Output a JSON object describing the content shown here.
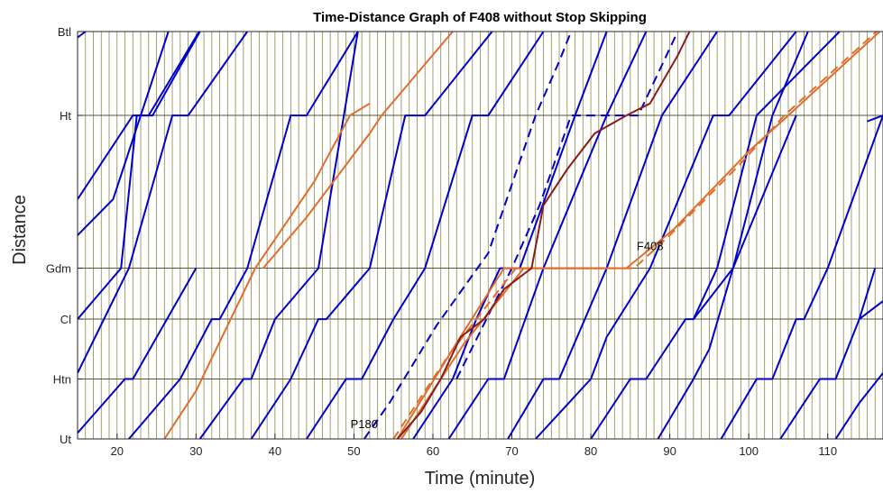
{
  "chart_data": {
    "type": "line",
    "title": "Time-Distance Graph of F408 without Stop Skipping",
    "xlabel": "Time (minute)",
    "ylabel": "Distance",
    "xlim": [
      15,
      117
    ],
    "x_ticks": [
      20,
      30,
      40,
      50,
      60,
      70,
      80,
      90,
      100,
      110
    ],
    "stations": [
      {
        "name": "Ut",
        "pos": 0
      },
      {
        "name": "Htn",
        "pos": 1
      },
      {
        "name": "Cl",
        "pos": 2
      },
      {
        "name": "Gdm",
        "pos": 2.85
      },
      {
        "name": "Ht",
        "pos": 5.4
      },
      {
        "name": "Btl",
        "pos": 6.8
      }
    ],
    "grid": "vertical lines every minute, horizontal lines at stations",
    "colors": {
      "regular": "#0000cc",
      "express": "#e46c2a",
      "highlight": "#8b1a1a",
      "grid_vertical": "#8a8a4a",
      "grid_horizontal": "#555533"
    },
    "annotations": [
      {
        "text": "P180",
        "x": 51.3,
        "y": 0.18
      },
      {
        "text": "F408",
        "x": 87.5,
        "y": 3.15
      }
    ],
    "series": [
      {
        "color": "#0000cc",
        "style": "solid",
        "points": [
          [
            15,
            0.1
          ],
          [
            21,
            1
          ],
          [
            22,
            1
          ],
          [
            30,
            2.85
          ]
        ]
      },
      {
        "color": "#0000cc",
        "style": "solid",
        "points": [
          [
            15,
            2.0
          ],
          [
            20.5,
            2.85
          ],
          [
            22.5,
            5.4
          ],
          [
            24.0,
            5.4
          ],
          [
            30.4,
            6.8
          ]
        ]
      },
      {
        "color": "#0000cc",
        "style": "solid",
        "points": [
          [
            15,
            4.0
          ],
          [
            22.0,
            5.4
          ],
          [
            24.5,
            5.4
          ],
          [
            30.5,
            6.8
          ]
        ]
      },
      {
        "color": "#0000cc",
        "style": "solid",
        "points": [
          [
            15,
            6.7
          ],
          [
            16,
            6.8
          ]
        ]
      },
      {
        "color": "#0000cc",
        "style": "solid",
        "points": [
          [
            15,
            3.4
          ],
          [
            19.5,
            4.0
          ],
          [
            26.5,
            6.8
          ]
        ]
      },
      {
        "color": "#0000cc",
        "style": "solid",
        "points": [
          [
            15,
            1.1
          ],
          [
            21.5,
            2.85
          ],
          [
            27.0,
            5.4
          ],
          [
            29.0,
            5.4
          ],
          [
            36.5,
            6.8
          ]
        ]
      },
      {
        "color": "#0000cc",
        "style": "solid",
        "points": [
          [
            21.5,
            0
          ],
          [
            28.0,
            1
          ],
          [
            32.0,
            2.0
          ],
          [
            33.0,
            2.0
          ],
          [
            36.5,
            2.85
          ],
          [
            42.0,
            5.4
          ],
          [
            44.0,
            5.4
          ],
          [
            50.5,
            6.8
          ]
        ]
      },
      {
        "color": "#0000cc",
        "style": "solid",
        "points": [
          [
            30.5,
            0
          ],
          [
            36.0,
            1
          ],
          [
            37.0,
            1
          ],
          [
            40.0,
            2.0
          ],
          [
            45.5,
            2.85
          ],
          [
            50.5,
            6.8
          ]
        ]
      },
      {
        "color": "#0000cc",
        "style": "solid",
        "points": [
          [
            37.0,
            0
          ],
          [
            42.0,
            1
          ],
          [
            45.5,
            2.0
          ],
          [
            46.5,
            2.0
          ],
          [
            52.0,
            2.85
          ],
          [
            56.5,
            5.4
          ],
          [
            59.0,
            5.4
          ],
          [
            67.5,
            6.8
          ]
        ]
      },
      {
        "color": "#0000cc",
        "style": "solid",
        "points": [
          [
            44.0,
            0
          ],
          [
            49.0,
            1
          ],
          [
            51.0,
            1
          ],
          [
            55.0,
            2.0
          ],
          [
            59.0,
            2.85
          ],
          [
            65.0,
            5.4
          ],
          [
            67.0,
            5.4
          ],
          [
            74.0,
            6.8
          ]
        ]
      },
      {
        "color": "#0000cc",
        "style": "solid",
        "points": [
          [
            57.5,
            0
          ],
          [
            62.5,
            1
          ],
          [
            65.5,
            2.0
          ],
          [
            68.5,
            2.85
          ],
          [
            71.0,
            2.85
          ],
          [
            78.0,
            5.4
          ],
          [
            82.0,
            6.8
          ]
        ]
      },
      {
        "color": "#0000cc",
        "style": "solid",
        "points": [
          [
            62.0,
            0
          ],
          [
            67.0,
            1
          ],
          [
            69.0,
            1
          ],
          [
            74.0,
            2.85
          ],
          [
            82.0,
            5.4
          ],
          [
            87.0,
            6.8
          ]
        ]
      },
      {
        "color": "#0000cc",
        "style": "solid",
        "points": [
          [
            69.5,
            0
          ],
          [
            74.0,
            1
          ],
          [
            76.0,
            1
          ],
          [
            82.0,
            2.85
          ],
          [
            89.0,
            5.4
          ],
          [
            96.0,
            6.8
          ]
        ]
      },
      {
        "color": "#0000cc",
        "style": "solid",
        "points": [
          [
            73.0,
            0
          ],
          [
            80.0,
            1
          ],
          [
            82.0,
            1.7
          ],
          [
            87.5,
            2.85
          ],
          [
            95.5,
            5.4
          ],
          [
            97.5,
            5.4
          ],
          [
            106.0,
            6.8
          ]
        ]
      },
      {
        "color": "#0000cc",
        "style": "solid",
        "points": [
          [
            80.0,
            0
          ],
          [
            85.0,
            1
          ],
          [
            87.0,
            1
          ],
          [
            92.0,
            2.0
          ],
          [
            93.0,
            2.0
          ],
          [
            96.0,
            2.85
          ],
          [
            101.0,
            5.4
          ],
          [
            111.5,
            6.8
          ]
        ]
      },
      {
        "color": "#0000cc",
        "style": "solid",
        "points": [
          [
            88.5,
            0
          ],
          [
            93.0,
            1
          ],
          [
            95.0,
            1.5
          ],
          [
            98.0,
            2.85
          ],
          [
            106.0,
            5.4
          ]
        ]
      },
      {
        "color": "#0000cc",
        "style": "solid",
        "points": [
          [
            96.5,
            0
          ],
          [
            101.0,
            1
          ],
          [
            103.0,
            1
          ],
          [
            106.0,
            2.0
          ],
          [
            107.0,
            2.0
          ],
          [
            110.0,
            2.85
          ],
          [
            117,
            5.4
          ]
        ]
      },
      {
        "color": "#0000cc",
        "style": "solid",
        "points": [
          [
            104.0,
            0
          ],
          [
            109.0,
            1
          ],
          [
            111.0,
            1
          ],
          [
            114.0,
            2.0
          ],
          [
            116.0,
            2.85
          ]
        ]
      },
      {
        "color": "#0000cc",
        "style": "solid",
        "points": [
          [
            111.0,
            0
          ],
          [
            114.0,
            0.6
          ],
          [
            117,
            1.1
          ]
        ]
      },
      {
        "color": "#0000cc",
        "style": "solid",
        "points": [
          [
            114.0,
            2.0
          ],
          [
            117,
            2.3
          ]
        ]
      },
      {
        "color": "#0000cc",
        "style": "solid",
        "points": [
          [
            115.0,
            5.3
          ],
          [
            117,
            5.4
          ]
        ]
      },
      {
        "color": "#0000cc",
        "style": "solid",
        "points": [
          [
            93.0,
            2.0
          ],
          [
            98.0,
            2.85
          ],
          [
            103.0,
            5.4
          ],
          [
            107.5,
            6.8
          ]
        ]
      },
      {
        "color": "#0000cc",
        "style": "dashed",
        "points": [
          [
            51.3,
            0
          ],
          [
            54.5,
            0.6
          ],
          [
            60.5,
            1.9
          ],
          [
            67.0,
            3.1
          ],
          [
            73.0,
            5.4
          ],
          [
            76.0,
            6.3
          ],
          [
            77.5,
            6.8
          ]
        ]
      },
      {
        "color": "#0000cc",
        "style": "dashed",
        "points": [
          [
            63.0,
            1.0
          ],
          [
            70.0,
            2.85
          ],
          [
            73.5,
            3.9
          ],
          [
            77.5,
            5.4
          ],
          [
            80.5,
            5.4
          ],
          [
            84.5,
            5.4
          ],
          [
            86.0,
            5.4
          ],
          [
            91.0,
            6.8
          ]
        ]
      },
      {
        "color": "#e46c2a",
        "style": "solid",
        "points": [
          [
            26.0,
            0
          ],
          [
            30.0,
            0.8
          ],
          [
            37.5,
            2.85
          ],
          [
            45.0,
            4.3
          ],
          [
            49.5,
            5.4
          ],
          [
            52.0,
            5.6
          ]
        ]
      },
      {
        "color": "#e46c2a",
        "style": "solid",
        "points": [
          [
            38.5,
            2.85
          ],
          [
            44.0,
            3.7
          ],
          [
            52.0,
            5.1
          ],
          [
            53.5,
            5.4
          ],
          [
            62.5,
            6.8
          ]
        ]
      },
      {
        "color": "#e46c2a",
        "style": "solid",
        "points": [
          [
            56.0,
            0
          ],
          [
            64.0,
            1.6
          ],
          [
            71.5,
            2.85
          ],
          [
            80.0,
            2.85
          ],
          [
            82.0,
            2.85
          ],
          [
            84.5,
            2.85
          ],
          [
            90.5,
            3.5
          ],
          [
            100.0,
            4.8
          ],
          [
            105.0,
            5.4
          ],
          [
            117,
            6.85
          ]
        ]
      },
      {
        "color": "#e46c2a",
        "style": "dashed",
        "points": [
          [
            55.0,
            0
          ],
          [
            62.0,
            1.4
          ],
          [
            70.5,
            2.85
          ],
          [
            83.5,
            2.85
          ],
          [
            85.5,
            2.85
          ],
          [
            90.0,
            3.4
          ],
          [
            99.0,
            4.6
          ],
          [
            104.5,
            5.4
          ],
          [
            117,
            6.9
          ]
        ]
      },
      {
        "color": "#e46c2a",
        "style": "solid",
        "points": [
          [
            55.5,
            0
          ],
          [
            63.0,
            1.6
          ],
          [
            69.0,
            2.85
          ],
          [
            72.0,
            2.85
          ],
          [
            82.0,
            2.85
          ]
        ]
      },
      {
        "color": "#8b1a1a",
        "style": "solid",
        "points": [
          [
            55.5,
            0
          ],
          [
            58.5,
            0.45
          ],
          [
            61.0,
            1.0
          ],
          [
            63.5,
            1.7
          ],
          [
            66.5,
            2.0
          ],
          [
            69.0,
            2.5
          ],
          [
            72.5,
            2.85
          ],
          [
            74.0,
            3.9
          ],
          [
            77.0,
            4.5
          ],
          [
            80.5,
            5.1
          ],
          [
            84.5,
            5.4
          ],
          [
            87.5,
            5.6
          ],
          [
            91.0,
            6.4
          ],
          [
            92.5,
            6.8
          ]
        ]
      }
    ]
  }
}
